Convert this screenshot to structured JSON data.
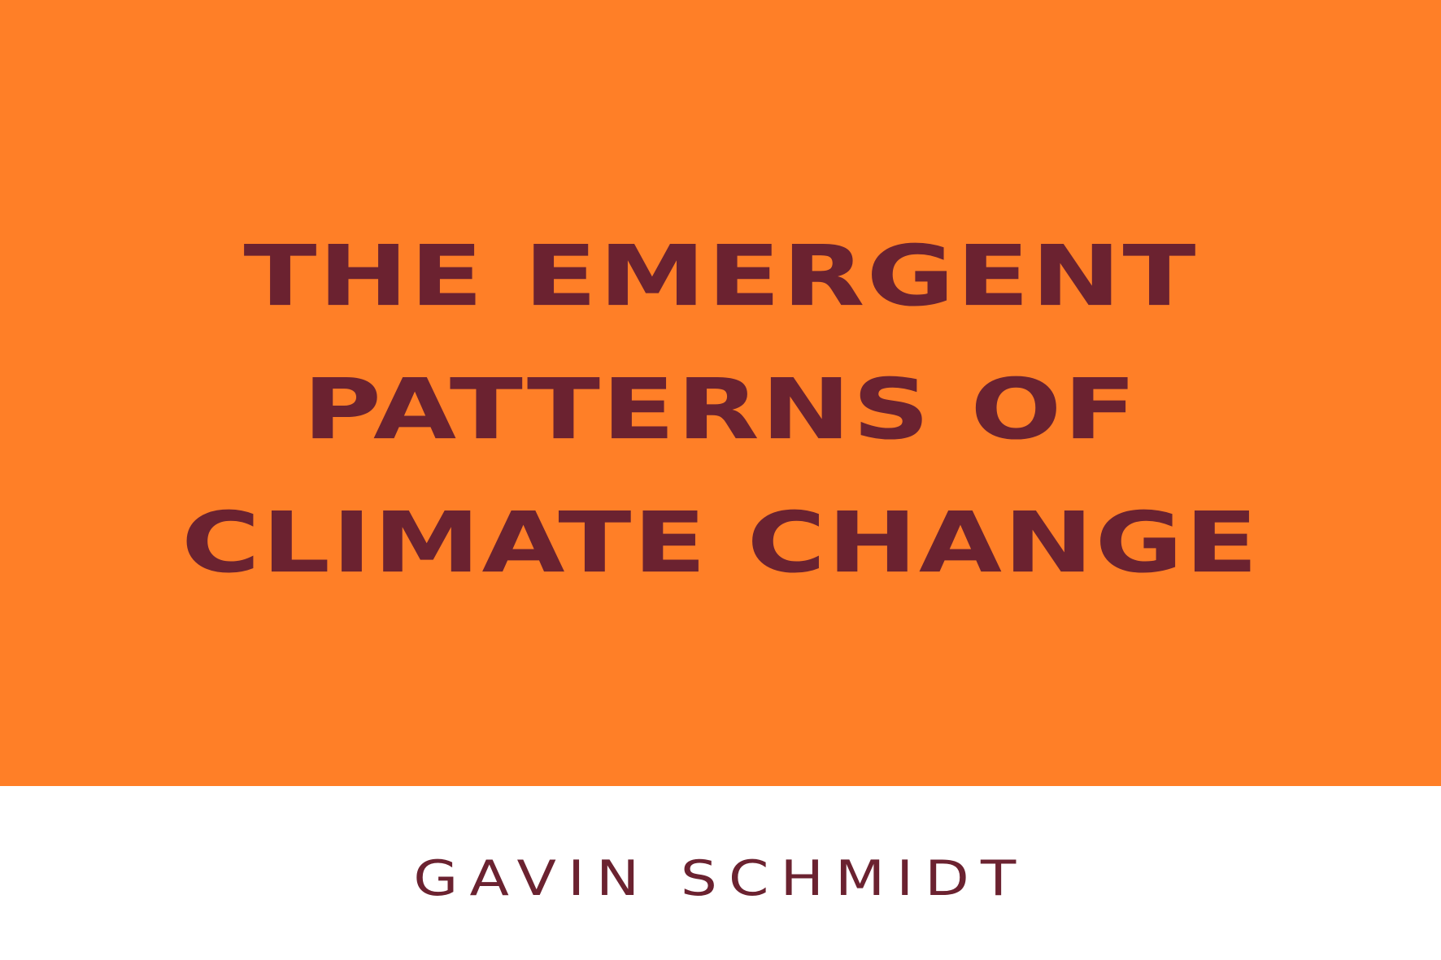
{
  "colors": {
    "background_top": "#FF7F27",
    "background_bottom": "#FFFFFF",
    "text": "#6B2230"
  },
  "title": {
    "lines": [
      "THE EMERGENT",
      "PATTERNS OF",
      "CLIMATE CHANGE"
    ]
  },
  "author": "GAVIN SCHMIDT"
}
